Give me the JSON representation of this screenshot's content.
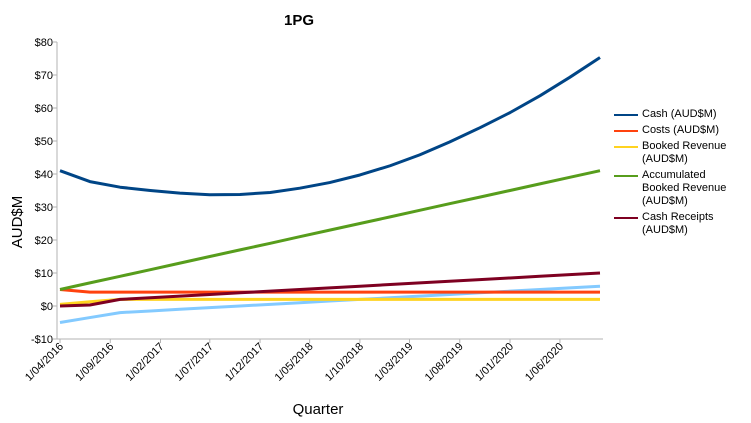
{
  "chart_data": {
    "type": "line",
    "title": "1PG",
    "x_label": "Quarter",
    "y_label": "AUD$M",
    "x": [
      "2016-04-01",
      "2016-07-01",
      "2016-10-01",
      "2017-01-01",
      "2017-04-01",
      "2017-07-01",
      "2017-10-01",
      "2018-01-01",
      "2018-04-01",
      "2018-07-01",
      "2018-10-01",
      "2019-01-01",
      "2019-04-01",
      "2019-07-01",
      "2019-10-01",
      "2020-01-01",
      "2020-04-01",
      "2020-07-01",
      "2020-10-01"
    ],
    "series": [
      {
        "name": "Cash (AUD$M)",
        "color": "#004586",
        "values": [
          41,
          37.7,
          36,
          35,
          34.2,
          33.7,
          33.8,
          34.4,
          35.7,
          37.4,
          39.7,
          42.5,
          45.8,
          49.7,
          54,
          58.6,
          63.7,
          69.3,
          75.3
        ]
      },
      {
        "name": "Costs (AUD$M)",
        "color": "#ff420e",
        "values": [
          5,
          4.2,
          4.2,
          4.2,
          4.2,
          4.2,
          4.2,
          4.2,
          4.2,
          4.2,
          4.2,
          4.2,
          4.2,
          4.2,
          4.2,
          4.2,
          4.2,
          4.2,
          4.2
        ]
      },
      {
        "name": "Booked Revenue (AUD$M)",
        "color": "#ffd320",
        "values": [
          0.5,
          1.3,
          2,
          2,
          2,
          2,
          2,
          2,
          2,
          2,
          2,
          2,
          2,
          2,
          2,
          2,
          2,
          2,
          2
        ]
      },
      {
        "name": "Accumulated Booked Revenue (AUD$M)",
        "color": "#579d1c",
        "values": [
          5,
          7,
          9,
          11,
          13,
          15,
          17,
          19,
          21,
          23,
          25,
          27,
          29,
          31,
          33,
          35,
          37,
          39,
          41
        ]
      },
      {
        "name": "Cash Receipts (AUD$M)",
        "color": "#7e0021",
        "values": [
          0,
          0.3,
          2,
          2.5,
          3,
          3.5,
          4,
          4.5,
          5,
          5.5,
          6,
          6.5,
          7,
          7.5,
          8,
          8.5,
          9,
          9.5,
          10
        ]
      },
      {
        "color": "#83caff",
        "values": [
          -5,
          -3.5,
          -2,
          -1.5,
          -1,
          -0.5,
          0,
          0.5,
          1,
          1.5,
          2,
          2.5,
          3,
          3.5,
          4,
          4.5,
          5,
          5.5,
          6
        ]
      }
    ],
    "ylim": [
      -10,
      80
    ],
    "yticks": [
      {
        "value": -10,
        "label": "-$10"
      },
      {
        "value": 0,
        "label": "$0"
      },
      {
        "value": 10,
        "label": "$10"
      },
      {
        "value": 20,
        "label": "$20"
      },
      {
        "value": 30,
        "label": "$30"
      },
      {
        "value": 40,
        "label": "$40"
      },
      {
        "value": 50,
        "label": "$50"
      },
      {
        "value": 60,
        "label": "$60"
      },
      {
        "value": 70,
        "label": "$70"
      },
      {
        "value": 80,
        "label": "$80"
      }
    ],
    "xticks": [
      {
        "value": "2016-04-01",
        "label": "1/04/2016"
      },
      {
        "value": "2016-09-01",
        "label": "1/09/2016"
      },
      {
        "value": "2017-02-01",
        "label": "1/02/2017"
      },
      {
        "value": "2017-07-01",
        "label": "1/07/2017"
      },
      {
        "value": "2017-12-01",
        "label": "1/12/2017"
      },
      {
        "value": "2018-05-01",
        "label": "1/05/2018"
      },
      {
        "value": "2018-10-01",
        "label": "1/10/2018"
      },
      {
        "value": "2019-03-01",
        "label": "1/03/2019"
      },
      {
        "value": "2019-08-01",
        "label": "1/08/2019"
      },
      {
        "value": "2020-01-01",
        "label": "1/01/2020"
      },
      {
        "value": "2020-06-01",
        "label": "1/06/2020"
      }
    ],
    "grid": false,
    "legend": "right"
  }
}
